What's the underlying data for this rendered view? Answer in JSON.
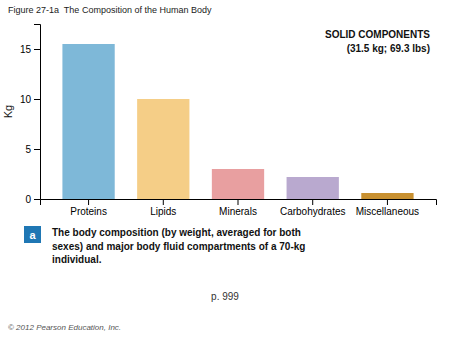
{
  "chart_data": {
    "type": "bar",
    "title": "Figure 27-1a  The Composition of the Human Body",
    "categories": [
      "Proteins",
      "Lipids",
      "Minerals",
      "Carbohydrates",
      "Miscellaneous"
    ],
    "values": [
      15.5,
      10.0,
      3.0,
      2.2,
      0.6
    ],
    "colors": [
      "#7EB8D8",
      "#F5CE87",
      "#E89FA0",
      "#B9A9CF",
      "#C89030"
    ],
    "ylim": [
      0,
      17.5
    ],
    "yticks": [
      0,
      5,
      10,
      15
    ],
    "ylabel": "Kg",
    "grid": false,
    "annotations": [
      "SOLID COMPONENTS",
      "(31.5 kg; 69.3 lbs)",
      "a",
      "The body composition (by weight, averaged for both\nsexes) and major body fluid compartments of a 70-kg\nindividual.",
      "p. 999",
      "© 2012 Pearson Education, Inc."
    ]
  }
}
